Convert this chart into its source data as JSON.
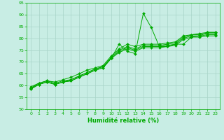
{
  "xlabel": "Humidité relative (%)",
  "xlim": [
    -0.5,
    23.5
  ],
  "ylim": [
    50,
    95
  ],
  "yticks": [
    50,
    55,
    60,
    65,
    70,
    75,
    80,
    85,
    90,
    95
  ],
  "xticks": [
    0,
    1,
    2,
    3,
    4,
    5,
    6,
    7,
    8,
    9,
    10,
    11,
    12,
    13,
    14,
    15,
    16,
    17,
    18,
    19,
    20,
    21,
    22,
    23
  ],
  "bg_color": "#c8ede4",
  "grid_color": "#a8d4c8",
  "line_color": "#00aa00",
  "series": [
    [
      58.5,
      60.5,
      61.5,
      60.5,
      61.5,
      62.0,
      63.5,
      65.0,
      66.5,
      67.5,
      71.5,
      77.5,
      74.5,
      73.5,
      90.5,
      84.5,
      76.5,
      76.5,
      77.5,
      77.5,
      80.5,
      81.0,
      82.5,
      82.5
    ],
    [
      59.0,
      61.0,
      62.0,
      61.0,
      62.0,
      62.5,
      64.0,
      65.5,
      67.0,
      68.0,
      72.0,
      75.0,
      76.5,
      75.5,
      77.0,
      77.0,
      77.0,
      77.5,
      78.0,
      80.5,
      81.5,
      81.5,
      82.0,
      82.0
    ],
    [
      59.5,
      61.0,
      62.0,
      61.5,
      62.5,
      63.5,
      65.0,
      66.5,
      67.5,
      68.5,
      72.5,
      75.5,
      77.5,
      76.5,
      77.5,
      77.5,
      77.5,
      78.0,
      78.5,
      81.0,
      81.5,
      82.0,
      82.5,
      82.5
    ],
    [
      59.0,
      60.5,
      61.5,
      60.5,
      61.5,
      62.5,
      64.0,
      65.5,
      67.0,
      68.0,
      71.5,
      74.5,
      76.0,
      75.0,
      76.5,
      76.5,
      76.5,
      77.0,
      77.5,
      80.0,
      81.0,
      81.0,
      81.5,
      81.5
    ],
    [
      58.5,
      60.5,
      61.5,
      60.5,
      61.5,
      62.0,
      63.5,
      65.0,
      66.5,
      67.5,
      71.5,
      74.0,
      75.5,
      74.5,
      76.0,
      76.0,
      76.0,
      76.5,
      77.0,
      79.5,
      80.5,
      80.5,
      81.0,
      81.0
    ]
  ]
}
